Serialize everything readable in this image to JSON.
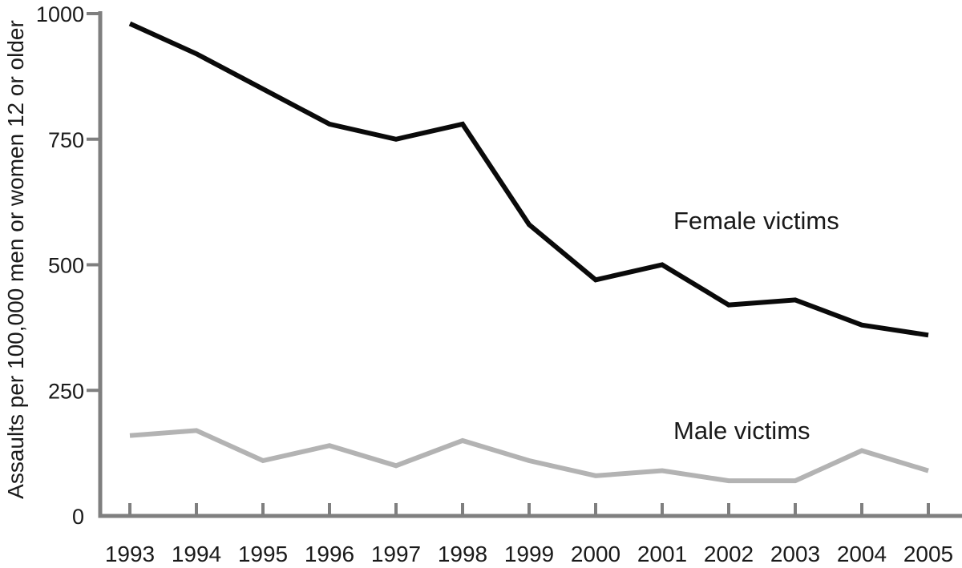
{
  "chart_data": {
    "type": "line",
    "title": "",
    "xlabel": "",
    "ylabel": "Assaults per 100,000 men or women 12 or older",
    "x": [
      1993,
      1994,
      1995,
      1996,
      1997,
      1998,
      1999,
      2000,
      2001,
      2002,
      2003,
      2004,
      2005
    ],
    "series": [
      {
        "name": "Female victims",
        "color": "#0a0a0a",
        "values": [
          980,
          920,
          850,
          780,
          750,
          780,
          580,
          470,
          500,
          420,
          430,
          380,
          360
        ]
      },
      {
        "name": "Male victims",
        "color": "#b3b3b3",
        "values": [
          160,
          170,
          110,
          140,
          100,
          150,
          110,
          80,
          90,
          70,
          70,
          130,
          90
        ]
      }
    ],
    "ylim": [
      0,
      1000
    ],
    "y_ticks": [
      0,
      250,
      500,
      750,
      1000
    ],
    "grid": false,
    "legend_position": "inline-labels-right-of-lines",
    "axis_color": "#7f7f7f",
    "text_color": "#1a1a1a",
    "background_color": "#ffffff"
  }
}
